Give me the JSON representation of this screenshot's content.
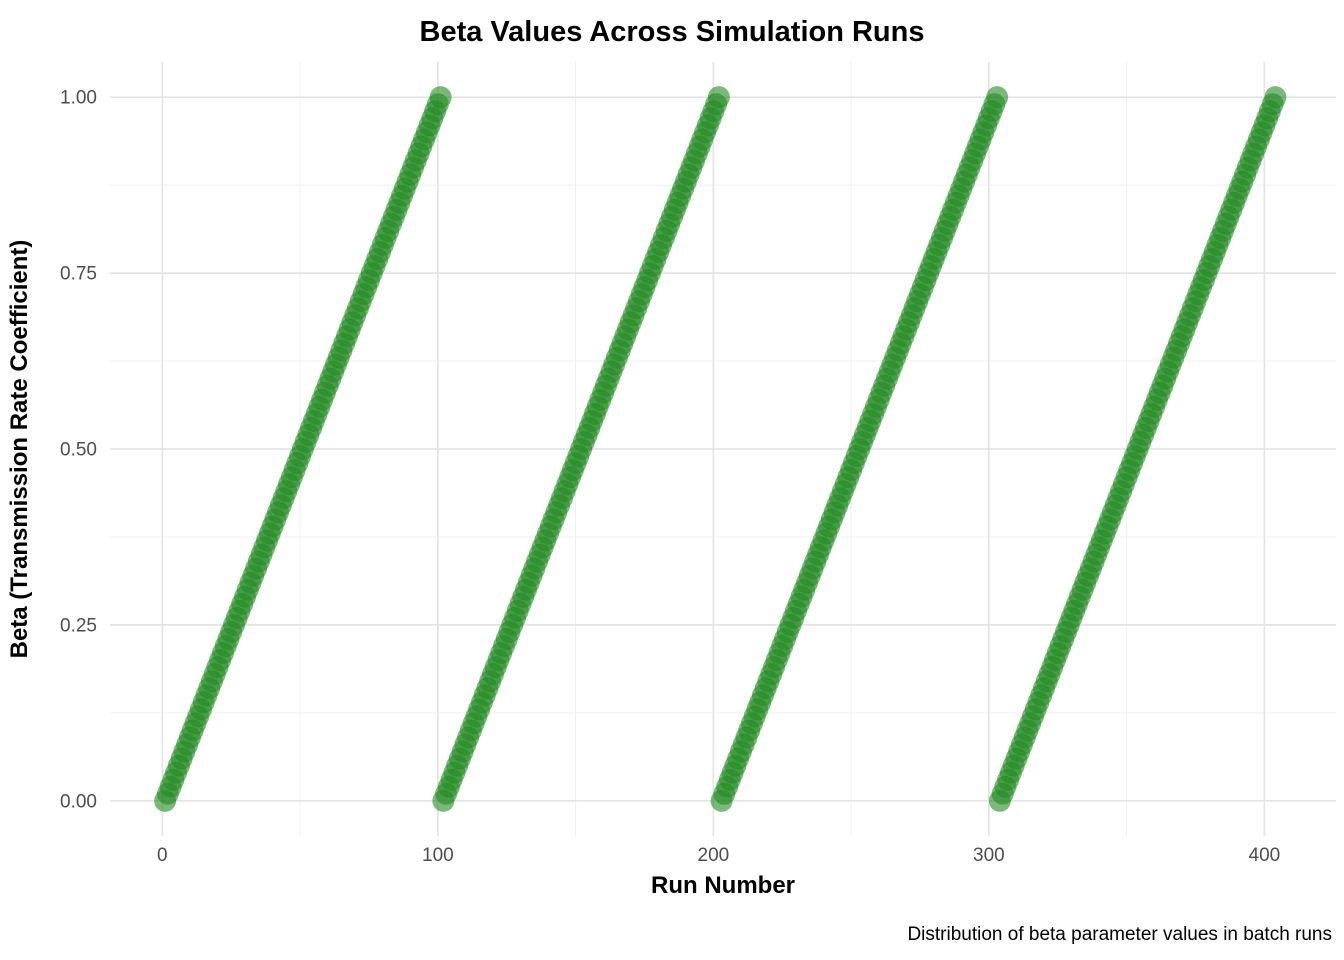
{
  "chart_data": {
    "type": "scatter",
    "title": "Beta Values Across Simulation Runs",
    "xlabel": "Run Number",
    "ylabel": "Beta (Transmission Rate Coefficient)",
    "caption": "Distribution of beta parameter values in batch runs",
    "legend": "none",
    "grid": "major+minor",
    "x_tick_labels": [
      "0",
      "100",
      "200",
      "300",
      "400"
    ],
    "x_tick_values": [
      0,
      100,
      200,
      300,
      400
    ],
    "y_tick_labels": [
      "0.00",
      "0.25",
      "0.50",
      "0.75",
      "1.00"
    ],
    "y_tick_values": [
      0,
      0.25,
      0.5,
      0.75,
      1
    ],
    "x_minor_values": [
      50,
      150,
      250,
      350
    ],
    "y_minor_values": [
      0.125,
      0.375,
      0.625,
      0.875
    ],
    "xlim": [
      -19,
      426
    ],
    "ylim": [
      -0.05,
      1.05
    ],
    "point_style": {
      "color": "#228B22",
      "opacity": 0.6,
      "radius_px": 11
    },
    "series": [
      {
        "name": "beta",
        "n_points": 404,
        "run_start": 1,
        "cycle_length": 101,
        "beta_min": 0.0,
        "beta_max": 1.0,
        "beta_step": 0.01,
        "pattern": "beta(run) = ((run - 1) mod 101) * 0.01 for run = 1..404 (sawtooth, 4 ramps from 0 to 1)",
        "segments": [
          {
            "run_start": 1,
            "run_end": 101,
            "beta_start": 0.0,
            "beta_end": 1.0
          },
          {
            "run_start": 102,
            "run_end": 202,
            "beta_start": 0.0,
            "beta_end": 1.0
          },
          {
            "run_start": 203,
            "run_end": 303,
            "beta_start": 0.0,
            "beta_end": 1.0
          },
          {
            "run_start": 304,
            "run_end": 404,
            "beta_start": 0.0,
            "beta_end": 1.0
          }
        ]
      }
    ],
    "colors": {
      "background": "#FFFFFF",
      "grid_major": "#E4E4E4",
      "grid_minor": "#EFEFEF",
      "tick_label": "#4D4D4D",
      "text": "#000000",
      "point": "#228B22"
    }
  }
}
